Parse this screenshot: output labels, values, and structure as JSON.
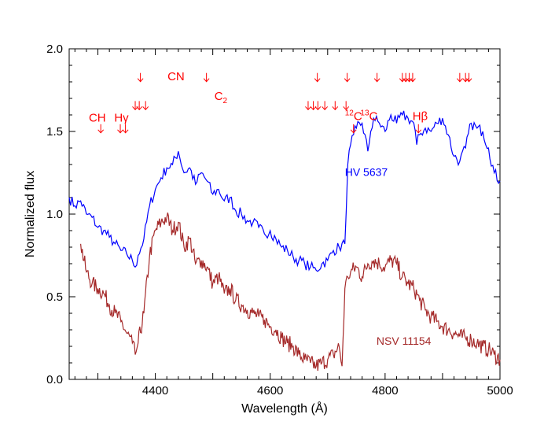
{
  "chart_data": {
    "type": "line",
    "title": "",
    "xlabel": "Wavelength (Å)",
    "ylabel": "Normalized flux",
    "xlim": [
      4250,
      5000
    ],
    "ylim": [
      0.0,
      2.0
    ],
    "xticks": [
      4400,
      4600,
      4800,
      5000
    ],
    "xtick_labels": [
      "4400",
      "4600",
      "4800",
      "5000"
    ],
    "yticks": [
      0.0,
      0.5,
      1.0,
      1.5,
      2.0
    ],
    "ytick_labels": [
      "0.0",
      "0.5",
      "1.0",
      "1.5",
      "2.0"
    ],
    "grid": false,
    "series": [
      {
        "name": "HV 5637",
        "color": "#0000ff",
        "x": [
          4250,
          4260,
          4270,
          4280,
          4290,
          4300,
          4310,
          4320,
          4330,
          4340,
          4350,
          4360,
          4365,
          4370,
          4380,
          4390,
          4400,
          4410,
          4420,
          4430,
          4440,
          4450,
          4460,
          4470,
          4480,
          4490,
          4500,
          4510,
          4520,
          4530,
          4540,
          4550,
          4560,
          4570,
          4580,
          4590,
          4600,
          4610,
          4620,
          4630,
          4640,
          4650,
          4660,
          4670,
          4680,
          4690,
          4700,
          4710,
          4720,
          4730,
          4735,
          4740,
          4745,
          4750,
          4760,
          4770,
          4775,
          4780,
          4790,
          4800,
          4810,
          4820,
          4830,
          4840,
          4850,
          4855,
          4860,
          4870,
          4880,
          4890,
          4900,
          4910,
          4920,
          4930,
          4940,
          4950,
          4960,
          4970,
          4980,
          4990,
          5000
        ],
        "y": [
          1.1,
          1.05,
          1.08,
          1.0,
          0.98,
          0.92,
          0.9,
          0.86,
          0.82,
          0.78,
          0.76,
          0.72,
          0.68,
          0.75,
          0.85,
          1.05,
          1.15,
          1.22,
          1.28,
          1.3,
          1.38,
          1.25,
          1.28,
          1.18,
          1.25,
          1.2,
          1.12,
          1.15,
          1.08,
          1.1,
          1.02,
          1.0,
          0.96,
          0.95,
          0.92,
          0.88,
          0.9,
          0.85,
          0.8,
          0.78,
          0.74,
          0.72,
          0.7,
          0.68,
          0.66,
          0.7,
          0.72,
          0.78,
          0.8,
          0.82,
          1.3,
          1.42,
          1.48,
          1.52,
          1.55,
          1.38,
          1.5,
          1.58,
          1.55,
          1.5,
          1.6,
          1.55,
          1.6,
          1.58,
          1.55,
          1.42,
          1.48,
          1.52,
          1.5,
          1.55,
          1.58,
          1.48,
          1.35,
          1.32,
          1.4,
          1.55,
          1.52,
          1.5,
          1.4,
          1.25,
          1.2
        ]
      },
      {
        "name": "NSV 11154",
        "color": "#a52a2a",
        "x": [
          4270,
          4280,
          4290,
          4300,
          4310,
          4320,
          4330,
          4340,
          4350,
          4360,
          4365,
          4370,
          4380,
          4390,
          4400,
          4410,
          4420,
          4430,
          4440,
          4450,
          4460,
          4470,
          4480,
          4490,
          4500,
          4510,
          4520,
          4530,
          4540,
          4550,
          4560,
          4570,
          4580,
          4590,
          4600,
          4610,
          4620,
          4630,
          4640,
          4650,
          4660,
          4670,
          4680,
          4690,
          4700,
          4710,
          4720,
          4725,
          4730,
          4735,
          4740,
          4750,
          4760,
          4770,
          4780,
          4790,
          4800,
          4810,
          4820,
          4830,
          4840,
          4850,
          4860,
          4870,
          4880,
          4890,
          4900,
          4910,
          4920,
          4930,
          4940,
          4950,
          4960,
          4970,
          4980,
          4990,
          5000
        ],
        "y": [
          0.82,
          0.65,
          0.58,
          0.55,
          0.52,
          0.45,
          0.4,
          0.35,
          0.28,
          0.22,
          0.15,
          0.22,
          0.4,
          0.75,
          0.9,
          0.95,
          0.98,
          0.9,
          0.95,
          0.8,
          0.85,
          0.7,
          0.72,
          0.68,
          0.58,
          0.62,
          0.52,
          0.55,
          0.48,
          0.45,
          0.42,
          0.4,
          0.38,
          0.36,
          0.32,
          0.3,
          0.25,
          0.22,
          0.2,
          0.15,
          0.12,
          0.1,
          0.08,
          0.1,
          0.12,
          0.15,
          0.2,
          0.08,
          0.55,
          0.62,
          0.65,
          0.68,
          0.62,
          0.7,
          0.72,
          0.7,
          0.68,
          0.72,
          0.7,
          0.62,
          0.58,
          0.55,
          0.48,
          0.42,
          0.38,
          0.35,
          0.32,
          0.3,
          0.28,
          0.26,
          0.25,
          0.24,
          0.22,
          0.2,
          0.18,
          0.15,
          0.12
        ]
      }
    ],
    "series_labels": [
      {
        "text": "HV 5637",
        "x": 4730,
        "y": 1.23,
        "color": "#0000ff"
      },
      {
        "text": "NSV 11154",
        "x": 4785,
        "y": 0.21,
        "color": "#a52a2a"
      }
    ],
    "annotations": {
      "color": "#ff0000",
      "labels": [
        {
          "id": "ch",
          "text": "CH",
          "x": 4299,
          "y": 1.56
        },
        {
          "id": "hgamma",
          "text": "Hγ",
          "x": 4341,
          "y": 1.56
        },
        {
          "id": "cn",
          "text": "CN",
          "x": 4436,
          "y": 1.81
        },
        {
          "id": "c2",
          "sym": "C",
          "sub": "2",
          "x": 4514,
          "y": 1.69
        },
        {
          "id": "c12",
          "sup": "12",
          "sym": "C",
          "x": 4745,
          "y": 1.57
        },
        {
          "id": "c13",
          "sup": "13",
          "sym": "C",
          "x": 4772,
          "y": 1.57
        },
        {
          "id": "hbeta",
          "text": "Hβ",
          "x": 4861,
          "y": 1.57
        }
      ],
      "arrows": {
        "row_top": {
          "y": 1.83,
          "x": [
            4374,
            4489,
            4682,
            4734,
            4786,
            4830,
            4836,
            4842,
            4848,
            4930,
            4940,
            4946
          ]
        },
        "row_mid": {
          "y": 1.66,
          "x": [
            4365,
            4372,
            4383,
            4666,
            4675,
            4683,
            4695,
            4713,
            4732
          ]
        },
        "row_low": {
          "y": 1.52,
          "x": [
            4305,
            4339,
            4348,
            4745,
            4858
          ]
        }
      }
    }
  }
}
